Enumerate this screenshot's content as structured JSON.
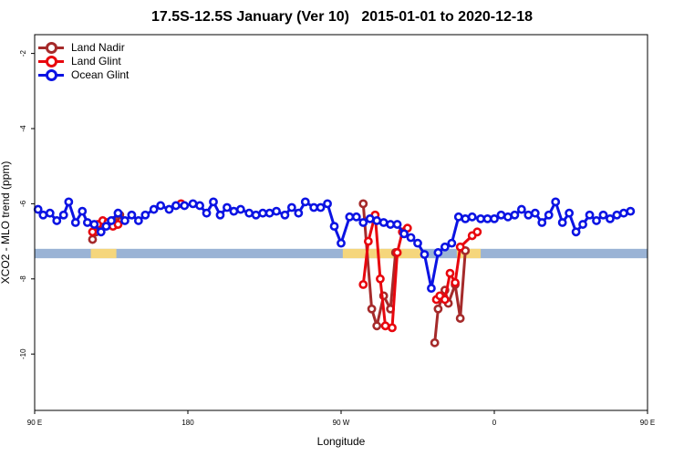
{
  "chart_data": {
    "type": "line",
    "title": "17.5S-12.5S January (Ver 10)   2015-01-01 to 2020-12-18",
    "xlabel": "Longitude",
    "ylabel": "XCO2 - MLO trend (ppm)",
    "xlim": [
      90,
      450
    ],
    "ylim": [
      -11.5,
      -1.5
    ],
    "x_ticks": [
      {
        "value": 90,
        "label": "90 E"
      },
      {
        "value": 180,
        "label": "180"
      },
      {
        "value": 270,
        "label": "90 W"
      },
      {
        "value": 360,
        "label": "0"
      },
      {
        "value": 450,
        "label": "90 E"
      },
      {
        "value": 540,
        "label": "180"
      }
    ],
    "y_ticks": [
      {
        "value": -2,
        "label": "-2"
      },
      {
        "value": -4,
        "label": "-4"
      },
      {
        "value": -6,
        "label": "-6"
      },
      {
        "value": -8,
        "label": "-8"
      },
      {
        "value": -10,
        "label": "-10"
      }
    ],
    "grid": false,
    "legend_position": "top-left",
    "land_band": {
      "y_range": [
        -7.45,
        -7.2
      ],
      "ocean_color": "#9ab3d5",
      "land_color": "#f5d67c",
      "land_segments": [
        [
          123,
          138
        ],
        [
          271,
          318
        ],
        [
          338,
          352
        ],
        [
          477,
          494
        ]
      ]
    },
    "series": [
      {
        "name": "Land Nadir",
        "color": "#a52a2a",
        "segments": [
          [
            [
              124,
              -6.95
            ],
            [
              126,
              -6.75
            ],
            [
              128,
              -6.65
            ],
            [
              130,
              -6.55
            ],
            [
              132,
              -6.5
            ],
            [
              134,
              -6.55
            ],
            [
              136,
              -6.45
            ],
            [
              138,
              -6.55
            ],
            [
              140,
              -6.3
            ]
          ],
          [
            [
              283,
              -6.0
            ],
            [
              288,
              -8.8
            ],
            [
              291,
              -9.25
            ],
            [
              295,
              -8.45
            ],
            [
              299,
              -8.8
            ],
            [
              302,
              -7.3
            ]
          ],
          [
            [
              325,
              -9.7
            ],
            [
              327,
              -8.8
            ],
            [
              331,
              -8.3
            ],
            [
              333,
              -8.65
            ],
            [
              337,
              -8.15
            ],
            [
              340,
              -9.05
            ],
            [
              343,
              -7.25
            ]
          ],
          [
            [
              477,
              -6.95
            ],
            [
              480,
              -6.7
            ],
            [
              482,
              -6.55
            ],
            [
              486,
              -6.45
            ],
            [
              490,
              -6.55
            ],
            [
              492,
              -6.3
            ]
          ]
        ]
      },
      {
        "name": "Land Glint",
        "color": "#e8070e",
        "segments": [
          [
            [
              124,
              -6.75
            ],
            [
              127,
              -6.55
            ],
            [
              130,
              -6.45
            ],
            [
              133,
              -6.5
            ],
            [
              136,
              -6.6
            ],
            [
              139,
              -6.55
            ]
          ],
          [
            [
              176,
              -6.0
            ]
          ],
          [
            [
              283,
              -8.15
            ],
            [
              286,
              -7.0
            ],
            [
              290,
              -6.3
            ],
            [
              293,
              -8.0
            ],
            [
              296,
              -9.25
            ],
            [
              300,
              -9.3
            ],
            [
              303,
              -7.3
            ],
            [
              306,
              -6.75
            ],
            [
              309,
              -6.65
            ]
          ],
          [
            [
              326,
              -8.55
            ],
            [
              328,
              -8.45
            ],
            [
              331,
              -8.55
            ],
            [
              334,
              -7.85
            ],
            [
              337,
              -8.1
            ],
            [
              340,
              -7.15
            ],
            [
              347,
              -6.85
            ],
            [
              350,
              -6.75
            ]
          ],
          [
            [
              477,
              -6.75
            ],
            [
              480,
              -6.65
            ],
            [
              484,
              -6.45
            ],
            [
              488,
              -6.5
            ],
            [
              492,
              -6.55
            ]
          ]
        ]
      },
      {
        "name": "Ocean Glint",
        "color": "#0b13e3",
        "segments": [
          [
            [
              92,
              -6.15
            ],
            [
              95,
              -6.3
            ],
            [
              99,
              -6.25
            ],
            [
              103,
              -6.45
            ],
            [
              107,
              -6.3
            ],
            [
              110,
              -5.95
            ],
            [
              114,
              -6.5
            ],
            [
              118,
              -6.2
            ],
            [
              121,
              -6.5
            ],
            [
              125,
              -6.55
            ],
            [
              129,
              -6.75
            ],
            [
              132,
              -6.6
            ],
            [
              135,
              -6.45
            ],
            [
              139,
              -6.25
            ],
            [
              143,
              -6.45
            ],
            [
              147,
              -6.3
            ],
            [
              151,
              -6.45
            ],
            [
              155,
              -6.3
            ],
            [
              160,
              -6.15
            ],
            [
              164,
              -6.05
            ],
            [
              169,
              -6.15
            ],
            [
              173,
              -6.05
            ],
            [
              178,
              -6.05
            ],
            [
              183,
              -6.0
            ],
            [
              187,
              -6.05
            ],
            [
              191,
              -6.25
            ],
            [
              195,
              -5.95
            ],
            [
              199,
              -6.3
            ],
            [
              203,
              -6.1
            ],
            [
              207,
              -6.2
            ],
            [
              211,
              -6.15
            ],
            [
              216,
              -6.25
            ],
            [
              220,
              -6.3
            ],
            [
              224,
              -6.25
            ],
            [
              228,
              -6.25
            ],
            [
              232,
              -6.2
            ],
            [
              237,
              -6.3
            ],
            [
              241,
              -6.1
            ],
            [
              245,
              -6.25
            ],
            [
              249,
              -5.95
            ],
            [
              254,
              -6.1
            ],
            [
              258,
              -6.1
            ],
            [
              262,
              -6.0
            ],
            [
              266,
              -6.6
            ],
            [
              270,
              -7.05
            ],
            [
              275,
              -6.35
            ],
            [
              279,
              -6.35
            ],
            [
              283,
              -6.5
            ],
            [
              287,
              -6.4
            ],
            [
              291,
              -6.45
            ],
            [
              295,
              -6.5
            ],
            [
              299,
              -6.55
            ],
            [
              303,
              -6.55
            ],
            [
              307,
              -6.8
            ],
            [
              311,
              -6.9
            ],
            [
              315,
              -7.05
            ],
            [
              319,
              -7.35
            ],
            [
              323,
              -8.25
            ],
            [
              327,
              -7.3
            ],
            [
              331,
              -7.15
            ],
            [
              335,
              -7.05
            ],
            [
              339,
              -6.35
            ],
            [
              343,
              -6.4
            ],
            [
              347,
              -6.35
            ],
            [
              352,
              -6.4
            ],
            [
              356,
              -6.4
            ],
            [
              360,
              -6.4
            ],
            [
              364,
              -6.3
            ],
            [
              368,
              -6.35
            ],
            [
              372,
              -6.3
            ],
            [
              376,
              -6.15
            ],
            [
              380,
              -6.3
            ],
            [
              384,
              -6.25
            ],
            [
              388,
              -6.5
            ],
            [
              392,
              -6.3
            ],
            [
              396,
              -5.95
            ],
            [
              400,
              -6.5
            ],
            [
              404,
              -6.25
            ],
            [
              408,
              -6.75
            ],
            [
              412,
              -6.55
            ],
            [
              416,
              -6.3
            ],
            [
              420,
              -6.45
            ],
            [
              424,
              -6.3
            ],
            [
              428,
              -6.4
            ],
            [
              432,
              -6.3
            ],
            [
              436,
              -6.25
            ],
            [
              440,
              -6.2
            ]
          ]
        ]
      }
    ]
  }
}
